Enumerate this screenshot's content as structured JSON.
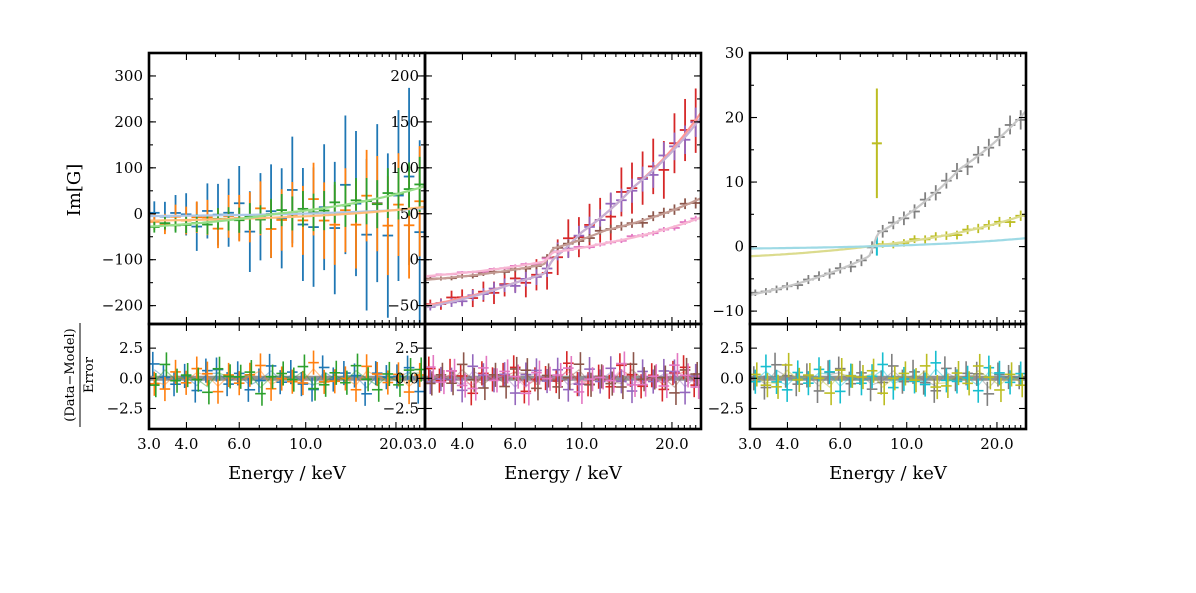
{
  "chart_data": {
    "type": "scatter",
    "shared": {
      "xlabel": "Energy / keV",
      "ylabel_main": "Im[G]",
      "resid_label_num": "(Data−Model)",
      "resid_label_den": "Error",
      "xscale": "log",
      "xlim": [
        3.0,
        25.0
      ],
      "xtick_values": [
        3.0,
        4.0,
        6.0,
        10.0,
        20.0
      ],
      "xtick_labels": [
        "3.0",
        "4.0",
        "6.0",
        "10.0",
        "20.0"
      ],
      "resid_ylim": [
        -4.2,
        4.5
      ],
      "resid_ticks": [
        2.5,
        0.0,
        -2.5
      ],
      "resid_tick_labels": [
        "2.5",
        "0.0",
        "−2.5"
      ]
    },
    "panels": [
      {
        "ylim": [
          -240,
          350
        ],
        "yticks": [
          300,
          200,
          100,
          0,
          -100,
          -200
        ],
        "ytick_labels": [
          "300",
          "200",
          "100",
          "0",
          "−100",
          "−200"
        ],
        "series": [
          {
            "color": "#1f77b4",
            "mode": "noisy",
            "model": [
              [
                3,
                -5
              ],
              [
                25,
                12
              ]
            ],
            "noise_lo": 10,
            "noise_hi": 100,
            "err_lo": 25,
            "err_hi": 200,
            "phase": 1.7
          },
          {
            "color": "#ff7f0e",
            "mode": "noisy",
            "model": [
              [
                3,
                -15
              ],
              [
                25,
                15
              ]
            ],
            "noise_lo": 8,
            "noise_hi": 60,
            "err_lo": 18,
            "err_hi": 120,
            "phase": 3.1
          },
          {
            "color": "#2ca02c",
            "mode": "noisy",
            "model": [
              [
                3,
                -28
              ],
              [
                8,
                0
              ],
              [
                15,
                25
              ],
              [
                25,
                60
              ]
            ],
            "noise_lo": 5,
            "noise_hi": 15,
            "err_lo": 12,
            "err_hi": 60,
            "phase": 5.3
          }
        ],
        "models": [
          {
            "color": "#aec7e8",
            "points": [
              [
                3,
                -5
              ],
              [
                25,
                12
              ]
            ]
          },
          {
            "color": "#ffbb78",
            "points": [
              [
                3,
                -15
              ],
              [
                25,
                15
              ]
            ]
          },
          {
            "color": "#98df8a",
            "points": [
              [
                3,
                -28
              ],
              [
                8,
                0
              ],
              [
                15,
                25
              ],
              [
                25,
                60
              ]
            ]
          }
        ],
        "resid_colors": [
          "#1f77b4",
          "#ff7f0e",
          "#2ca02c"
        ]
      },
      {
        "ylim": [
          -70,
          225
        ],
        "yticks": [
          200,
          150,
          100,
          50,
          0,
          -50
        ],
        "ytick_labels": [
          "200",
          "150",
          "100",
          "50",
          "0",
          "−50"
        ],
        "series": [
          {
            "color": "#d62728",
            "mode": "noisy",
            "model": [
              [
                3,
                -50
              ],
              [
                6,
                -25
              ],
              [
                7.5,
                -15
              ],
              [
                8,
                0
              ],
              [
                10,
                30
              ],
              [
                15,
                80
              ],
              [
                25,
                160
              ]
            ],
            "noise_lo": 3,
            "noise_hi": 14,
            "err_lo": 5,
            "err_hi": 35,
            "phase": 2.3
          },
          {
            "color": "#9467bd",
            "mode": "noisy",
            "model": [
              [
                3,
                -52
              ],
              [
                6,
                -25
              ],
              [
                7.5,
                -15
              ],
              [
                8,
                0
              ],
              [
                10,
                30
              ],
              [
                15,
                80
              ],
              [
                25,
                155
              ]
            ],
            "noise_lo": 2,
            "noise_hi": 8,
            "err_lo": 4,
            "err_hi": 16,
            "phase": 4.7
          },
          {
            "color": "#8c564b",
            "mode": "noisy",
            "model": [
              [
                3,
                -22
              ],
              [
                7.5,
                -5
              ],
              [
                8,
                12
              ],
              [
                12,
                32
              ],
              [
                25,
                67
              ]
            ],
            "noise_lo": 1,
            "noise_hi": 3,
            "err_lo": 2,
            "err_hi": 6,
            "phase": 0.9
          },
          {
            "color": "#e377c2",
            "mode": "noisy",
            "model": [
              [
                3,
                -18
              ],
              [
                7.5,
                -2
              ],
              [
                8,
                8
              ],
              [
                12,
                18
              ],
              [
                25,
                46
              ]
            ],
            "noise_lo": 1,
            "noise_hi": 2,
            "err_lo": 1,
            "err_hi": 3,
            "phase": 6.1
          }
        ],
        "models": [
          {
            "color": "#ff9896",
            "points": [
              [
                3,
                -50
              ],
              [
                6,
                -25
              ],
              [
                7.5,
                -15
              ],
              [
                8,
                0
              ],
              [
                10,
                30
              ],
              [
                15,
                80
              ],
              [
                25,
                160
              ]
            ]
          },
          {
            "color": "#c5b0d5",
            "points": [
              [
                3,
                -52
              ],
              [
                6,
                -25
              ],
              [
                7.5,
                -15
              ],
              [
                8,
                0
              ],
              [
                10,
                30
              ],
              [
                15,
                80
              ],
              [
                25,
                155
              ]
            ]
          },
          {
            "color": "#c49c94",
            "points": [
              [
                3,
                -22
              ],
              [
                7.5,
                -5
              ],
              [
                8,
                12
              ],
              [
                12,
                32
              ],
              [
                25,
                67
              ]
            ]
          },
          {
            "color": "#f7b6d2",
            "points": [
              [
                3,
                -18
              ],
              [
                7.5,
                -2
              ],
              [
                8,
                8
              ],
              [
                12,
                18
              ],
              [
                25,
                46
              ]
            ]
          }
        ],
        "resid_colors": [
          "#d62728",
          "#9467bd",
          "#8c564b",
          "#e377c2"
        ]
      },
      {
        "ylim": [
          -12,
          30
        ],
        "yticks": [
          30,
          20,
          10,
          0,
          -10
        ],
        "ytick_labels": [
          "30",
          "20",
          "10",
          "0",
          "−10"
        ],
        "series": [
          {
            "color": "#7f7f7f",
            "mode": "noisy",
            "model": [
              [
                3,
                -7.5
              ],
              [
                7.5,
                -1.5
              ],
              [
                8,
                2
              ],
              [
                15,
                12
              ],
              [
                25,
                21
              ]
            ],
            "noise_lo": 0.2,
            "noise_hi": 0.6,
            "err_lo": 0.5,
            "err_hi": 1.5,
            "phase": 1.3
          },
          {
            "color": "#bcbd22",
            "mode": "single",
            "x": 7.95,
            "y": 16,
            "err": 8.5
          },
          {
            "color": "#bcbd22",
            "mode": "noisy",
            "xmin": 8.1,
            "model": [
              [
                8.1,
                0.2
              ],
              [
                25,
                5
              ]
            ],
            "noise_lo": 0.15,
            "noise_hi": 0.4,
            "err_lo": 0.3,
            "err_hi": 0.8,
            "phase": 3.9
          },
          {
            "color": "#17becf",
            "mode": "single",
            "x": 7.95,
            "y": 0.1,
            "err": 1.5
          }
        ],
        "models": [
          {
            "color": "#c7c7c7",
            "points": [
              [
                3,
                -7.5
              ],
              [
                7.5,
                -1.5
              ],
              [
                8,
                2
              ],
              [
                15,
                12
              ],
              [
                25,
                21
              ]
            ]
          },
          {
            "color": "#dbdb8d",
            "points": [
              [
                3,
                -1.5
              ],
              [
                8,
                0.2
              ],
              [
                25,
                5
              ]
            ]
          },
          {
            "color": "#9edae5",
            "points": [
              [
                3,
                -0.3
              ],
              [
                25,
                1.3
              ]
            ]
          }
        ],
        "resid_colors": [
          "#7f7f7f",
          "#17becf",
          "#bcbd22"
        ]
      }
    ]
  }
}
